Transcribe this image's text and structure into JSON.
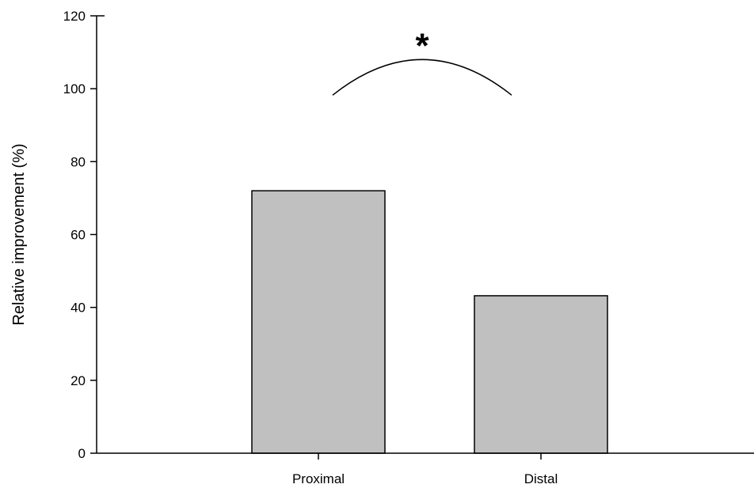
{
  "chart_data": {
    "type": "bar",
    "categories": [
      "Proximal",
      "Distal"
    ],
    "values": [
      72,
      43.2
    ],
    "xlabel": "",
    "ylabel": "Relative improvement (%)",
    "ylim": [
      0,
      120
    ],
    "yticks": [
      0,
      20,
      40,
      60,
      80,
      100,
      120
    ],
    "grid": false,
    "legend": "none",
    "bar_color": "#c0c0c0",
    "bar_edge_color": "#000000",
    "annotations": [
      {
        "text": "*",
        "type": "significance-arc",
        "between": [
          "Proximal",
          "Distal"
        ],
        "y": 108
      }
    ]
  }
}
